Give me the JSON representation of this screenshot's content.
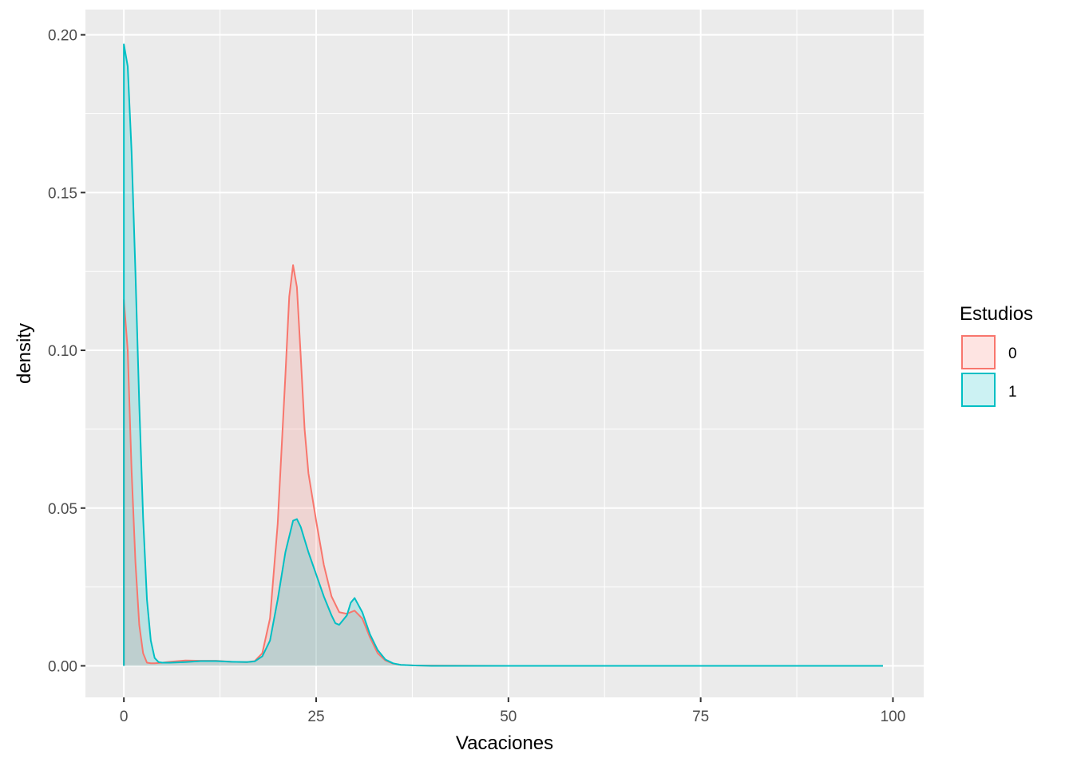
{
  "chart_data": {
    "type": "area",
    "title": "",
    "xlabel": "Vacaciones",
    "ylabel": "density",
    "xlim": [
      -5,
      104
    ],
    "ylim": [
      -0.01,
      0.208
    ],
    "x_ticks": [
      0,
      25,
      50,
      75,
      100
    ],
    "x_tick_labels": [
      "0",
      "25",
      "50",
      "75",
      "100"
    ],
    "y_ticks": [
      0,
      0.05,
      0.1,
      0.15,
      0.2
    ],
    "y_tick_labels": [
      "0.00",
      "0.05",
      "0.10",
      "0.15",
      "0.20"
    ],
    "grid": true,
    "legend": {
      "title": "Estudios",
      "placement": "right"
    },
    "series": [
      {
        "name": "0",
        "color": "#F8766D",
        "fill": "#F8766D",
        "fill_opacity": 0.2,
        "x": [
          0,
          0.5,
          1,
          1.5,
          2,
          2.5,
          3,
          3.5,
          4,
          5,
          6,
          8,
          10,
          12,
          14,
          16,
          17,
          18,
          19,
          20,
          21,
          21.5,
          22,
          22.5,
          23,
          23.5,
          24,
          25,
          26,
          27,
          28,
          29,
          30,
          31,
          32,
          33,
          34,
          35,
          36,
          38,
          40,
          50,
          60,
          70,
          80,
          90,
          98.7
        ],
        "y": [
          0.116,
          0.1,
          0.062,
          0.033,
          0.013,
          0.004,
          0.001,
          0.0008,
          0.0008,
          0.001,
          0.0013,
          0.0017,
          0.0016,
          0.0016,
          0.0013,
          0.0012,
          0.0015,
          0.004,
          0.015,
          0.045,
          0.092,
          0.117,
          0.127,
          0.12,
          0.098,
          0.075,
          0.061,
          0.046,
          0.032,
          0.022,
          0.017,
          0.0165,
          0.0175,
          0.015,
          0.009,
          0.004,
          0.0017,
          0.0007,
          0.0003,
          0.0001,
          0.0001,
          0,
          0,
          0,
          0,
          0,
          0
        ]
      },
      {
        "name": "1",
        "color": "#00BFC4",
        "fill": "#00BFC4",
        "fill_opacity": 0.2,
        "x": [
          0,
          0.5,
          1,
          1.5,
          2,
          2.5,
          3,
          3.5,
          4,
          4.5,
          5,
          6,
          8,
          10,
          12,
          14,
          16,
          17,
          18,
          19,
          20,
          21,
          22,
          22.5,
          23,
          24,
          25,
          26,
          27,
          27.5,
          28,
          29,
          29.5,
          30,
          31,
          32,
          33,
          34,
          35,
          36,
          38,
          40,
          50,
          60,
          70,
          80,
          90,
          98.7
        ],
        "y": [
          0.197,
          0.19,
          0.163,
          0.125,
          0.083,
          0.047,
          0.021,
          0.008,
          0.0025,
          0.0012,
          0.001,
          0.001,
          0.0012,
          0.0015,
          0.0015,
          0.0013,
          0.0012,
          0.0014,
          0.003,
          0.008,
          0.021,
          0.036,
          0.046,
          0.0465,
          0.044,
          0.036,
          0.029,
          0.022,
          0.016,
          0.0135,
          0.013,
          0.016,
          0.02,
          0.0215,
          0.017,
          0.01,
          0.005,
          0.002,
          0.0008,
          0.0003,
          0.0001,
          0,
          0,
          0,
          0,
          0,
          0,
          0
        ]
      }
    ]
  }
}
